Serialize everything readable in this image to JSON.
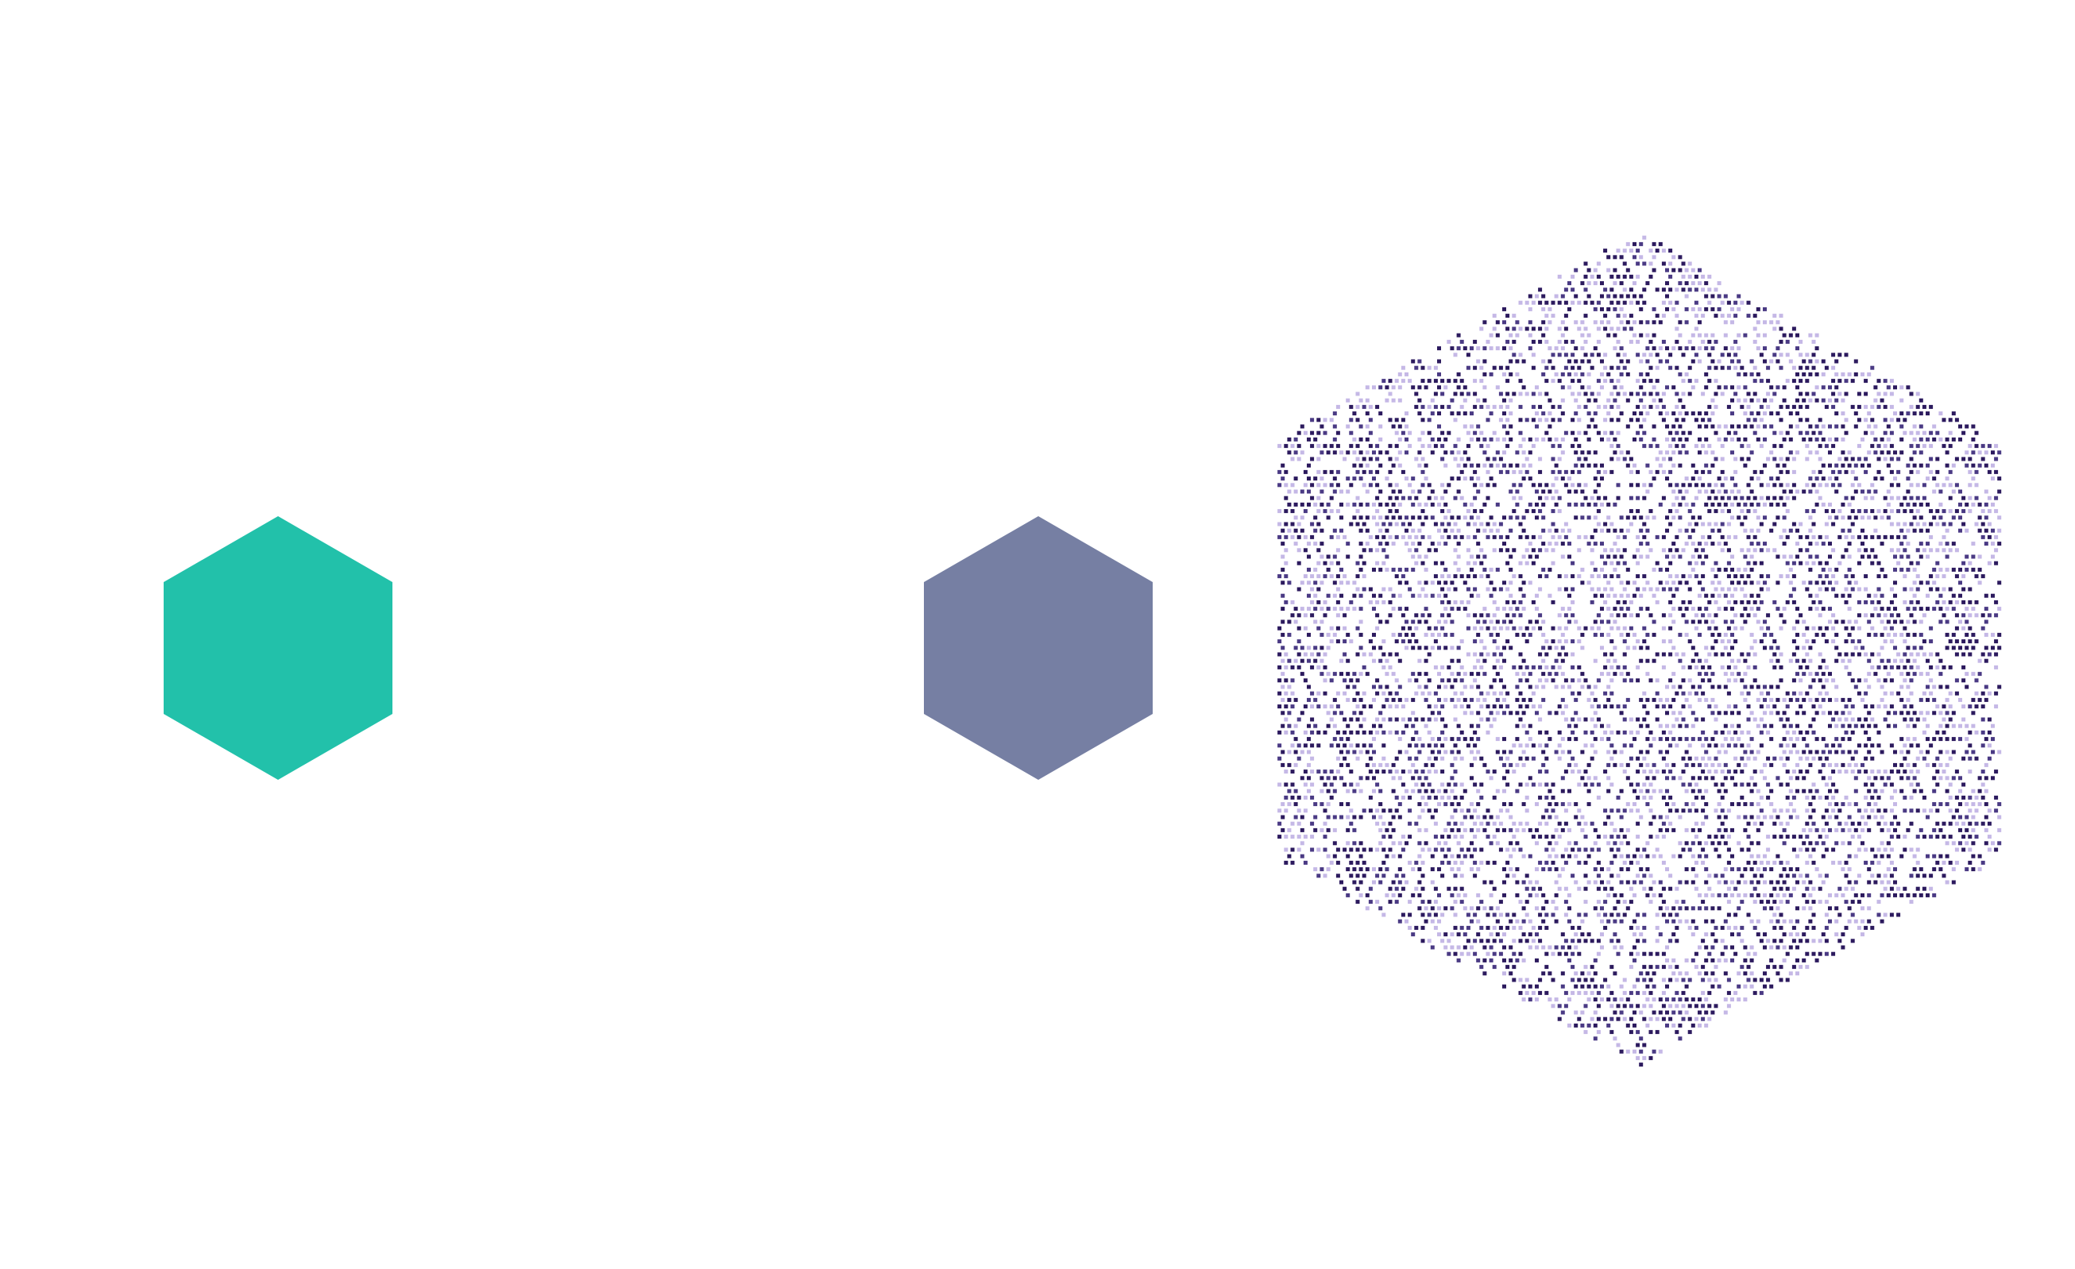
{
  "shapes": {
    "teal_hexagon": {
      "fill": "#22c1aa"
    },
    "slate_hexagon": {
      "fill": "#767fa3"
    },
    "dotted_hexagon": {
      "dark_dot_color": "#2c1a5e",
      "mid_dot_color": "#4a3a84",
      "light_dot_color": "#c5b8e6"
    }
  }
}
